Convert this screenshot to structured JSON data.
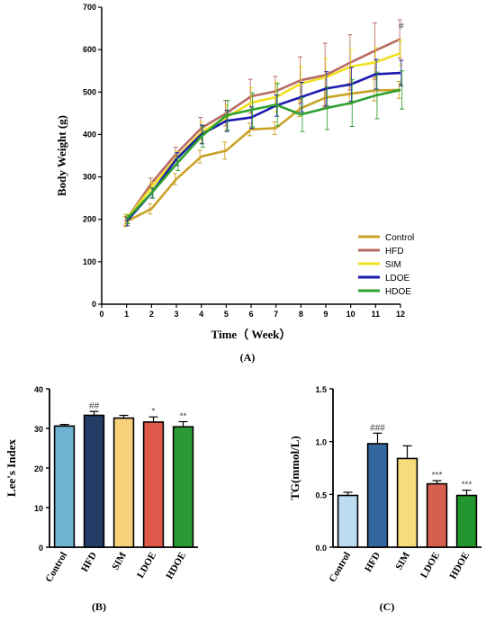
{
  "chart_data": [
    {
      "id": "A",
      "type": "line",
      "panel_label": "(A)",
      "xlabel": "Time（ Week）",
      "ylabel": "Body Weight (g)",
      "xlim": [
        0,
        12
      ],
      "ylim": [
        0,
        700
      ],
      "xticks": [
        0,
        1,
        2,
        3,
        4,
        5,
        6,
        7,
        8,
        9,
        10,
        11,
        12
      ],
      "yticks": [
        0,
        100,
        200,
        300,
        400,
        500,
        600,
        700
      ],
      "x": [
        1,
        2,
        3,
        4,
        5,
        6,
        7,
        8,
        9,
        10,
        11,
        12
      ],
      "legend_position": "bottom-right",
      "series": [
        {
          "name": "Control",
          "color": "#c9a227",
          "values": [
            195,
            225,
            295,
            348,
            362,
            412,
            415,
            462,
            487,
            496,
            504,
            505
          ],
          "errors": [
            12,
            12,
            13,
            15,
            20,
            15,
            15,
            20,
            20,
            25,
            25,
            20
          ]
        },
        {
          "name": "HFD",
          "color": "#b86b63",
          "values": [
            200,
            285,
            355,
            415,
            450,
            490,
            502,
            528,
            540,
            570,
            598,
            625
          ],
          "errors": [
            12,
            12,
            15,
            25,
            30,
            40,
            35,
            55,
            75,
            65,
            65,
            45
          ]
        },
        {
          "name": "SIM",
          "color": "#f0e020",
          "values": [
            200,
            275,
            345,
            405,
            440,
            475,
            488,
            520,
            535,
            560,
            570,
            592
          ],
          "errors": [
            12,
            12,
            15,
            25,
            30,
            35,
            35,
            40,
            45,
            40,
            35,
            30
          ]
        },
        {
          "name": "LDOE",
          "color": "#1a1ab0",
          "values": [
            195,
            262,
            342,
            400,
            432,
            440,
            468,
            488,
            508,
            518,
            542,
            545
          ],
          "errors": [
            10,
            12,
            15,
            22,
            25,
            25,
            25,
            35,
            40,
            40,
            35,
            30
          ]
        },
        {
          "name": "HDOE",
          "color": "#2ea02e",
          "values": [
            200,
            262,
            330,
            395,
            445,
            458,
            470,
            447,
            462,
            474,
            492,
            505
          ],
          "errors": [
            10,
            12,
            15,
            25,
            35,
            40,
            50,
            40,
            50,
            55,
            55,
            45
          ]
        }
      ],
      "annotations": [
        {
          "text": "#",
          "x": 12,
          "y": 658
        },
        {
          "text": "*",
          "x": 12,
          "y": 515
        }
      ]
    },
    {
      "id": "B",
      "type": "bar",
      "panel_label": "(B)",
      "ylabel": "Lee's Index",
      "ylim": [
        0,
        40
      ],
      "yticks": [
        0,
        10,
        20,
        30,
        40
      ],
      "categories": [
        "Control",
        "HFD",
        "SIM",
        "LDOE",
        "HDOE"
      ],
      "values": [
        30.6,
        33.3,
        32.6,
        31.6,
        30.4
      ],
      "errors": [
        0.4,
        1.0,
        0.7,
        1.3,
        1.3
      ],
      "colors": [
        "#6fb3d2",
        "#233d66",
        "#f9d17a",
        "#e05a4c",
        "#2a9a37"
      ],
      "annotations": [
        "",
        "##",
        "",
        "*",
        "**"
      ]
    },
    {
      "id": "C",
      "type": "bar",
      "panel_label": "(C)",
      "ylabel": "TG(mmol/L)",
      "ylim": [
        0,
        1.5
      ],
      "yticks": [
        "0.0",
        "0.5",
        "1.0",
        "1.5"
      ],
      "categories": [
        "Control",
        "HFD",
        "SIM",
        "LDOE",
        "HDOE"
      ],
      "values": [
        0.49,
        0.98,
        0.84,
        0.6,
        0.49
      ],
      "errors": [
        0.03,
        0.1,
        0.12,
        0.03,
        0.05
      ],
      "colors": [
        "#bcdcf0",
        "#34679e",
        "#f7dc7c",
        "#d75f4e",
        "#22962e"
      ],
      "annotations": [
        "",
        "###",
        "",
        "***",
        "***"
      ]
    }
  ]
}
